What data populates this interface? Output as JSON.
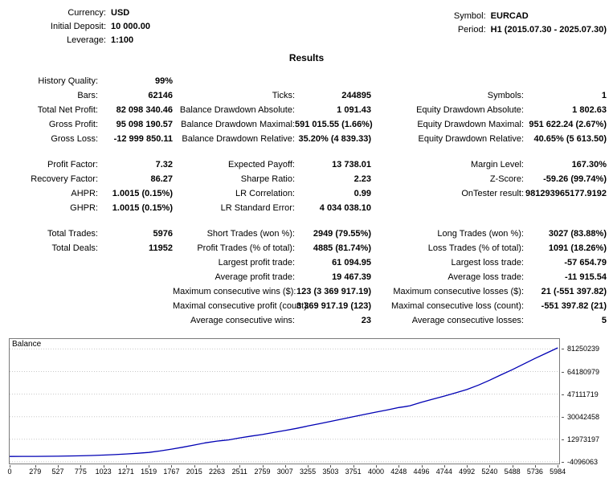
{
  "header": {
    "left": [
      {
        "label": "Currency:",
        "value": "USD"
      },
      {
        "label": "Initial Deposit:",
        "value": "10 000.00"
      },
      {
        "label": "Leverage:",
        "value": "1:100"
      }
    ],
    "right": [
      {
        "label": "Symbol:",
        "value": "EURCAD"
      },
      {
        "label": "Period:",
        "value": "H1 (2015.07.30 - 2025.07.30)"
      }
    ]
  },
  "results_title": "Results",
  "stats": {
    "rows": [
      {
        "c1l": "History Quality:",
        "c1v": "99%",
        "c2l": "",
        "c2v": "",
        "c3l": "",
        "c3v": ""
      },
      {
        "c1l": "Bars:",
        "c1v": "62146",
        "c2l": "Ticks:",
        "c2v": "244895",
        "c3l": "Symbols:",
        "c3v": "1"
      },
      {
        "c1l": "Total Net Profit:",
        "c1v": "82 098 340.46",
        "c2l": "Balance Drawdown Absolute:",
        "c2v": "1 091.43",
        "c3l": "Equity Drawdown Absolute:",
        "c3v": "1 802.63"
      },
      {
        "c1l": "Gross Profit:",
        "c1v": "95 098 190.57",
        "c2l": "Balance Drawdown Maximal:",
        "c2v": "591 015.55 (1.66%)",
        "c3l": "Equity Drawdown Maximal:",
        "c3v": "951 622.24 (2.67%)"
      },
      {
        "c1l": "Gross Loss:",
        "c1v": "-12 999 850.11",
        "c2l": "Balance Drawdown Relative:",
        "c2v": "35.20% (4 839.33)",
        "c3l": "Equity Drawdown Relative:",
        "c3v": "40.65% (5 613.50)"
      },
      {
        "gap": true
      },
      {
        "c1l": "Profit Factor:",
        "c1v": "7.32",
        "c2l": "Expected Payoff:",
        "c2v": "13 738.01",
        "c3l": "Margin Level:",
        "c3v": "167.30%"
      },
      {
        "c1l": "Recovery Factor:",
        "c1v": "86.27",
        "c2l": "Sharpe Ratio:",
        "c2v": "2.23",
        "c3l": "Z-Score:",
        "c3v": "-59.26 (99.74%)"
      },
      {
        "c1l": "AHPR:",
        "c1v": "1.0015 (0.15%)",
        "c2l": "LR Correlation:",
        "c2v": "0.99",
        "c3l": "OnTester result:",
        "c3v": "981293965177.9192"
      },
      {
        "c1l": "GHPR:",
        "c1v": "1.0015 (0.15%)",
        "c2l": "LR Standard Error:",
        "c2v": "4 034 038.10",
        "c3l": "",
        "c3v": ""
      },
      {
        "gap": true
      },
      {
        "c1l": "Total Trades:",
        "c1v": "5976",
        "c2l": "Short Trades (won %):",
        "c2v": "2949 (79.55%)",
        "c3l": "Long Trades (won %):",
        "c3v": "3027 (83.88%)"
      },
      {
        "c1l": "Total Deals:",
        "c1v": "11952",
        "c2l": "Profit Trades (% of total):",
        "c2v": "4885 (81.74%)",
        "c3l": "Loss Trades (% of total):",
        "c3v": "1091 (18.26%)"
      },
      {
        "c1l": "",
        "c1v": "",
        "c2l": "Largest profit trade:",
        "c2v": "61 094.95",
        "c3l": "Largest loss trade:",
        "c3v": "-57 654.79"
      },
      {
        "c1l": "",
        "c1v": "",
        "c2l": "Average profit trade:",
        "c2v": "19 467.39",
        "c3l": "Average loss trade:",
        "c3v": "-11 915.54"
      },
      {
        "c1l": "",
        "c1v": "",
        "c2l": "Maximum consecutive wins ($):",
        "c2v": "123 (3 369 917.19)",
        "c3l": "Maximum consecutive losses ($):",
        "c3v": "21 (-551 397.82)"
      },
      {
        "c1l": "",
        "c1v": "",
        "c2l": "Maximal consecutive profit (count):",
        "c2v": "3 369 917.19 (123)",
        "c3l": "Maximal consecutive loss (count):",
        "c3v": "-551 397.82 (21)"
      },
      {
        "c1l": "",
        "c1v": "",
        "c2l": "Average consecutive wins:",
        "c2v": "23",
        "c3l": "Average consecutive losses:",
        "c3v": "5"
      }
    ]
  },
  "chart_data": {
    "type": "line",
    "title": "Balance",
    "xlabel": "",
    "ylabel": "",
    "legend": "none",
    "grid": "horizontal-dotted",
    "line_color": "#0000b4",
    "grid_color": "#c8c8c8",
    "y_ticks": [
      81250239,
      64180979,
      47111719,
      30042458,
      12973197,
      -4096063
    ],
    "y_tick_labels": [
      "81250239",
      "64180979",
      "47111719",
      "30042458",
      "12973197",
      "-4096063"
    ],
    "x_ticks": [
      0,
      279,
      527,
      775,
      1023,
      1271,
      1519,
      1767,
      2015,
      2263,
      2511,
      2759,
      3007,
      3255,
      3503,
      3751,
      4000,
      4248,
      4496,
      4744,
      4992,
      5240,
      5488,
      5736,
      5984
    ],
    "x_tick_labels": [
      "0",
      "279",
      "527",
      "775",
      "1023",
      "1271",
      "1519",
      "1767",
      "2015",
      "2263",
      "2511",
      "2759",
      "3007",
      "3255",
      "3503",
      "3751",
      "4000",
      "4248",
      "4496",
      "4744",
      "4992",
      "5240",
      "5488",
      "5736",
      "5984"
    ],
    "xlim_render": [
      0,
      6000
    ],
    "ylim_render": [
      -5350000,
      88780000
    ],
    "series": [
      {
        "name": "Balance",
        "points": [
          [
            0,
            10000
          ],
          [
            140,
            25000
          ],
          [
            279,
            60000
          ],
          [
            400,
            120000
          ],
          [
            527,
            200000
          ],
          [
            650,
            330000
          ],
          [
            775,
            500000
          ],
          [
            900,
            730000
          ],
          [
            1023,
            1000000
          ],
          [
            1150,
            1400000
          ],
          [
            1271,
            1850000
          ],
          [
            1400,
            2400000
          ],
          [
            1519,
            3050000
          ],
          [
            1640,
            4100000
          ],
          [
            1767,
            5500000
          ],
          [
            1890,
            7000000
          ],
          [
            2015,
            8600000
          ],
          [
            2140,
            10300000
          ],
          [
            2263,
            11600000
          ],
          [
            2330,
            12100000
          ],
          [
            2390,
            12500000
          ],
          [
            2511,
            14000000
          ],
          [
            2640,
            15400000
          ],
          [
            2759,
            16600000
          ],
          [
            2880,
            18100000
          ],
          [
            3007,
            19600000
          ],
          [
            3130,
            21200000
          ],
          [
            3255,
            23000000
          ],
          [
            3380,
            24700000
          ],
          [
            3503,
            26500000
          ],
          [
            3630,
            28300000
          ],
          [
            3751,
            30000000
          ],
          [
            3880,
            31800000
          ],
          [
            4000,
            33500000
          ],
          [
            4120,
            35100000
          ],
          [
            4248,
            37000000
          ],
          [
            4310,
            37600000
          ],
          [
            4370,
            38300000
          ],
          [
            4496,
            41000000
          ],
          [
            4620,
            43300000
          ],
          [
            4744,
            45600000
          ],
          [
            4870,
            48100000
          ],
          [
            4992,
            50600000
          ],
          [
            5120,
            54000000
          ],
          [
            5240,
            57600000
          ],
          [
            5360,
            61500000
          ],
          [
            5488,
            65600000
          ],
          [
            5610,
            69800000
          ],
          [
            5736,
            74100000
          ],
          [
            5860,
            78100000
          ],
          [
            5984,
            82108340
          ]
        ]
      }
    ]
  }
}
